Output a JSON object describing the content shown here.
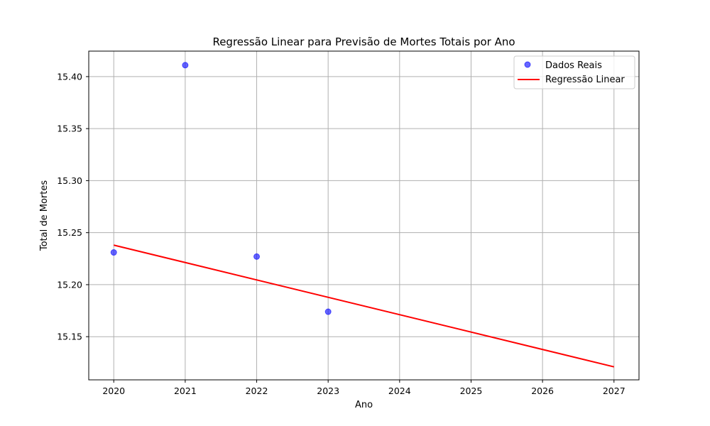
{
  "chart_data": {
    "type": "scatter",
    "title": "Regressão Linear para Previsão de Mortes Totais por Ano",
    "xlabel": "Ano",
    "ylabel": "Total de Mortes",
    "xlim": [
      2019.65,
      2027.35
    ],
    "ylim": [
      15.1085,
      15.4245
    ],
    "grid": true,
    "legend_position": "top-right",
    "x_ticks": [
      "2020",
      "2021",
      "2022",
      "2023",
      "2024",
      "2025",
      "2026",
      "2027"
    ],
    "y_ticks": [
      "15.15",
      "15.20",
      "15.25",
      "15.30",
      "15.35",
      "15.40"
    ],
    "series": [
      {
        "name": "Dados Reais",
        "type": "scatter",
        "color": "#0000ff",
        "x": [
          2020,
          2021,
          2022,
          2023
        ],
        "y": [
          15.231,
          15.411,
          15.227,
          15.174
        ]
      },
      {
        "name": "Regressão Linear",
        "type": "line",
        "color": "#ff0000",
        "x": [
          2020,
          2027
        ],
        "y": [
          15.238,
          15.121
        ]
      }
    ]
  }
}
